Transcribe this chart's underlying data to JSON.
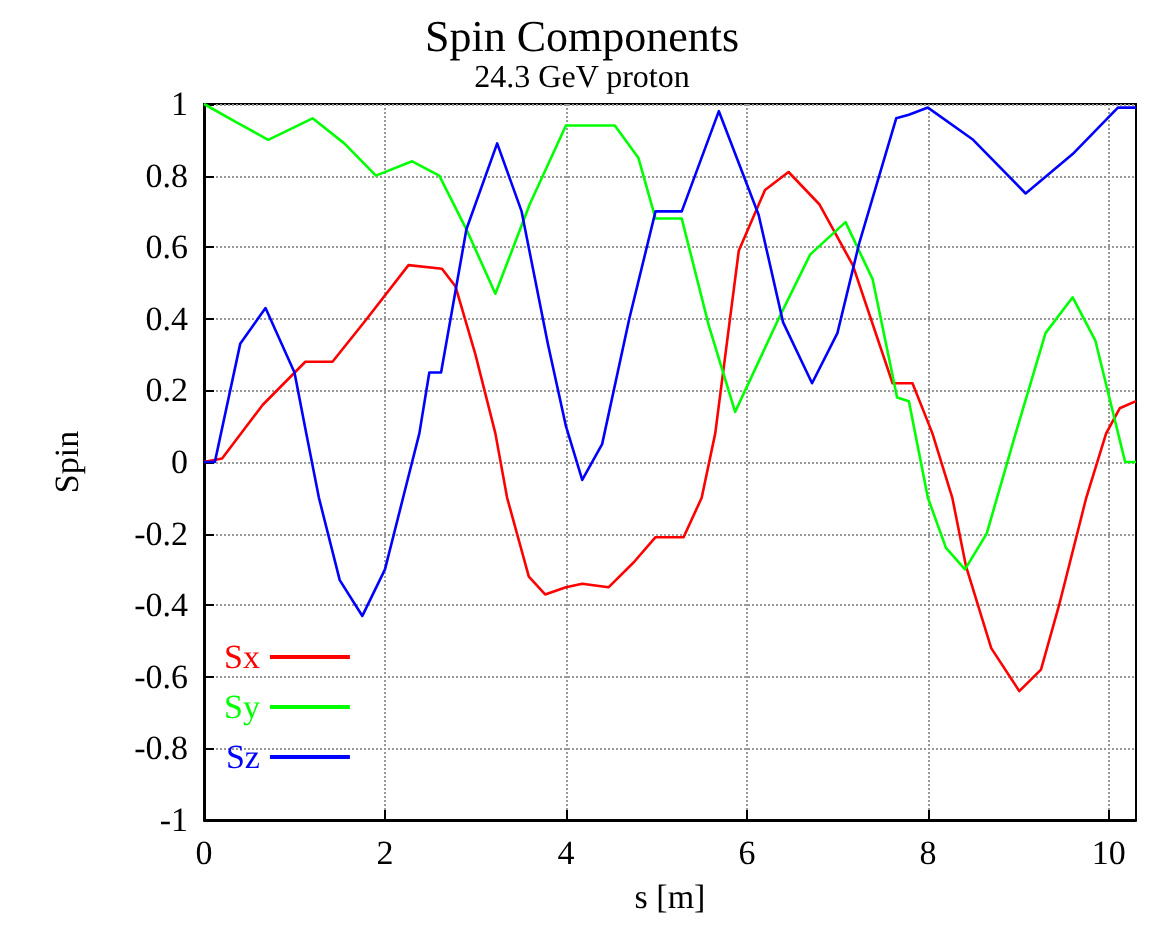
{
  "chart_data": {
    "type": "line",
    "title": "Spin Components",
    "subtitle": "24.3 GeV proton",
    "xlabel": "s [m]",
    "ylabel": "Spin",
    "xlim": [
      0,
      10.3
    ],
    "xticks": [
      0,
      2,
      4,
      6,
      8,
      10
    ],
    "ylim": [
      -1,
      1
    ],
    "yticks": [
      -1,
      -0.8,
      -0.6,
      -0.4,
      -0.2,
      0,
      0.2,
      0.4,
      0.6,
      0.8,
      1
    ],
    "grid": true,
    "legend": "bottom left",
    "marker": "none",
    "line_style": "solid",
    "series": [
      {
        "name": "Sx",
        "color": "#ff0000",
        "x": [
          0,
          0.2,
          0.65,
          1.12,
          1.42,
          1.8,
          2.26,
          2.63,
          2.78,
          3.0,
          3.22,
          3.35,
          3.59,
          3.77,
          4.0,
          4.18,
          4.47,
          4.75,
          4.99,
          5.3,
          5.5,
          5.65,
          5.91,
          6.2,
          6.46,
          6.8,
          7.17,
          7.61,
          7.83,
          8.05,
          8.27,
          8.42,
          8.7,
          9.01,
          9.25,
          9.45,
          9.75,
          9.97,
          10.12,
          10.3
        ],
        "values": [
          0,
          0.01,
          0.16,
          0.28,
          0.28,
          0.4,
          0.55,
          0.54,
          0.49,
          0.3,
          0.08,
          -0.1,
          -0.32,
          -0.37,
          -0.35,
          -0.34,
          -0.35,
          -0.28,
          -0.21,
          -0.21,
          -0.1,
          0.08,
          0.59,
          0.76,
          0.81,
          0.72,
          0.55,
          0.22,
          0.22,
          0.08,
          -0.1,
          -0.29,
          -0.52,
          -0.64,
          -0.58,
          -0.4,
          -0.1,
          0.08,
          0.15,
          0.17
        ]
      },
      {
        "name": "Sy",
        "color": "#00ff00",
        "x": [
          0,
          0.35,
          0.71,
          1.2,
          1.55,
          1.9,
          2.3,
          2.6,
          2.9,
          3.22,
          3.6,
          4.0,
          4.54,
          4.8,
          4.99,
          5.28,
          5.58,
          5.87,
          6.35,
          6.7,
          7.09,
          7.39,
          7.66,
          7.79,
          8.0,
          8.2,
          8.41,
          8.65,
          8.97,
          9.3,
          9.6,
          9.85,
          10.18,
          10.3
        ],
        "values": [
          1.0,
          0.95,
          0.9,
          0.96,
          0.89,
          0.8,
          0.84,
          0.8,
          0.65,
          0.47,
          0.72,
          0.94,
          0.94,
          0.85,
          0.68,
          0.68,
          0.38,
          0.14,
          0.4,
          0.58,
          0.67,
          0.51,
          0.18,
          0.17,
          -0.1,
          -0.24,
          -0.3,
          -0.2,
          0.08,
          0.36,
          0.46,
          0.34,
          0.0,
          0.0
        ]
      },
      {
        "name": "Sz",
        "color": "#0000ff",
        "x": [
          0,
          0.12,
          0.4,
          0.68,
          1.0,
          1.13,
          1.27,
          1.5,
          1.75,
          2.0,
          2.2,
          2.38,
          2.49,
          2.62,
          2.9,
          3.24,
          3.51,
          3.8,
          4.0,
          4.18,
          4.4,
          4.7,
          4.99,
          5.28,
          5.69,
          6.13,
          6.4,
          6.72,
          7.0,
          7.24,
          7.65,
          7.79,
          8.0,
          8.5,
          9.08,
          9.6,
          10.1,
          10.3
        ],
        "values": [
          0,
          0,
          0.33,
          0.43,
          0.25,
          0.08,
          -0.1,
          -0.33,
          -0.43,
          -0.3,
          -0.1,
          0.08,
          0.25,
          0.25,
          0.65,
          0.89,
          0.7,
          0.33,
          0.1,
          -0.05,
          0.05,
          0.4,
          0.7,
          0.7,
          0.98,
          0.69,
          0.39,
          0.22,
          0.36,
          0.61,
          0.96,
          0.97,
          0.99,
          0.9,
          0.75,
          0.86,
          0.99,
          0.99
        ]
      }
    ]
  }
}
